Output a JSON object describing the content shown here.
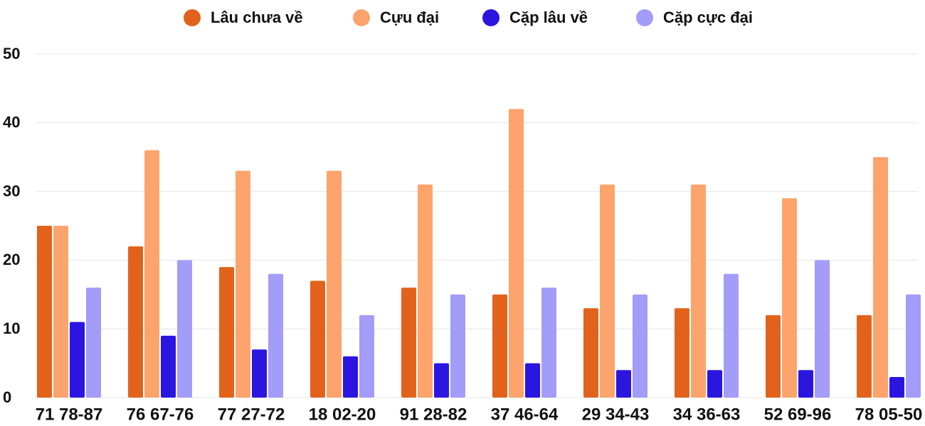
{
  "chart_data": {
    "type": "bar",
    "categories": [
      "71 78-87",
      "76 67-76",
      "77 27-72",
      "18 02-20",
      "91 28-82",
      "37 46-64",
      "29 34-43",
      "34 36-63",
      "52 69-96",
      "78 05-50"
    ],
    "series": [
      {
        "name": "Lâu chưa về",
        "color": "#e2621b",
        "values": [
          25,
          22,
          19,
          17,
          16,
          15,
          13,
          13,
          12,
          12
        ]
      },
      {
        "name": "Cựu đại",
        "color": "#fca46c",
        "values": [
          25,
          36,
          33,
          33,
          31,
          42,
          31,
          31,
          29,
          35
        ]
      },
      {
        "name": "Cặp lâu về",
        "color": "#2b16e0",
        "values": [
          11,
          9,
          7,
          6,
          5,
          5,
          4,
          4,
          4,
          3
        ]
      },
      {
        "name": "Cặp cực đại",
        "color": "#a39cf8",
        "values": [
          16,
          20,
          18,
          12,
          15,
          16,
          15,
          18,
          20,
          15
        ]
      }
    ],
    "ylim": [
      0,
      50
    ],
    "yticks": [
      0,
      10,
      20,
      30,
      40,
      50
    ],
    "grid": true
  }
}
